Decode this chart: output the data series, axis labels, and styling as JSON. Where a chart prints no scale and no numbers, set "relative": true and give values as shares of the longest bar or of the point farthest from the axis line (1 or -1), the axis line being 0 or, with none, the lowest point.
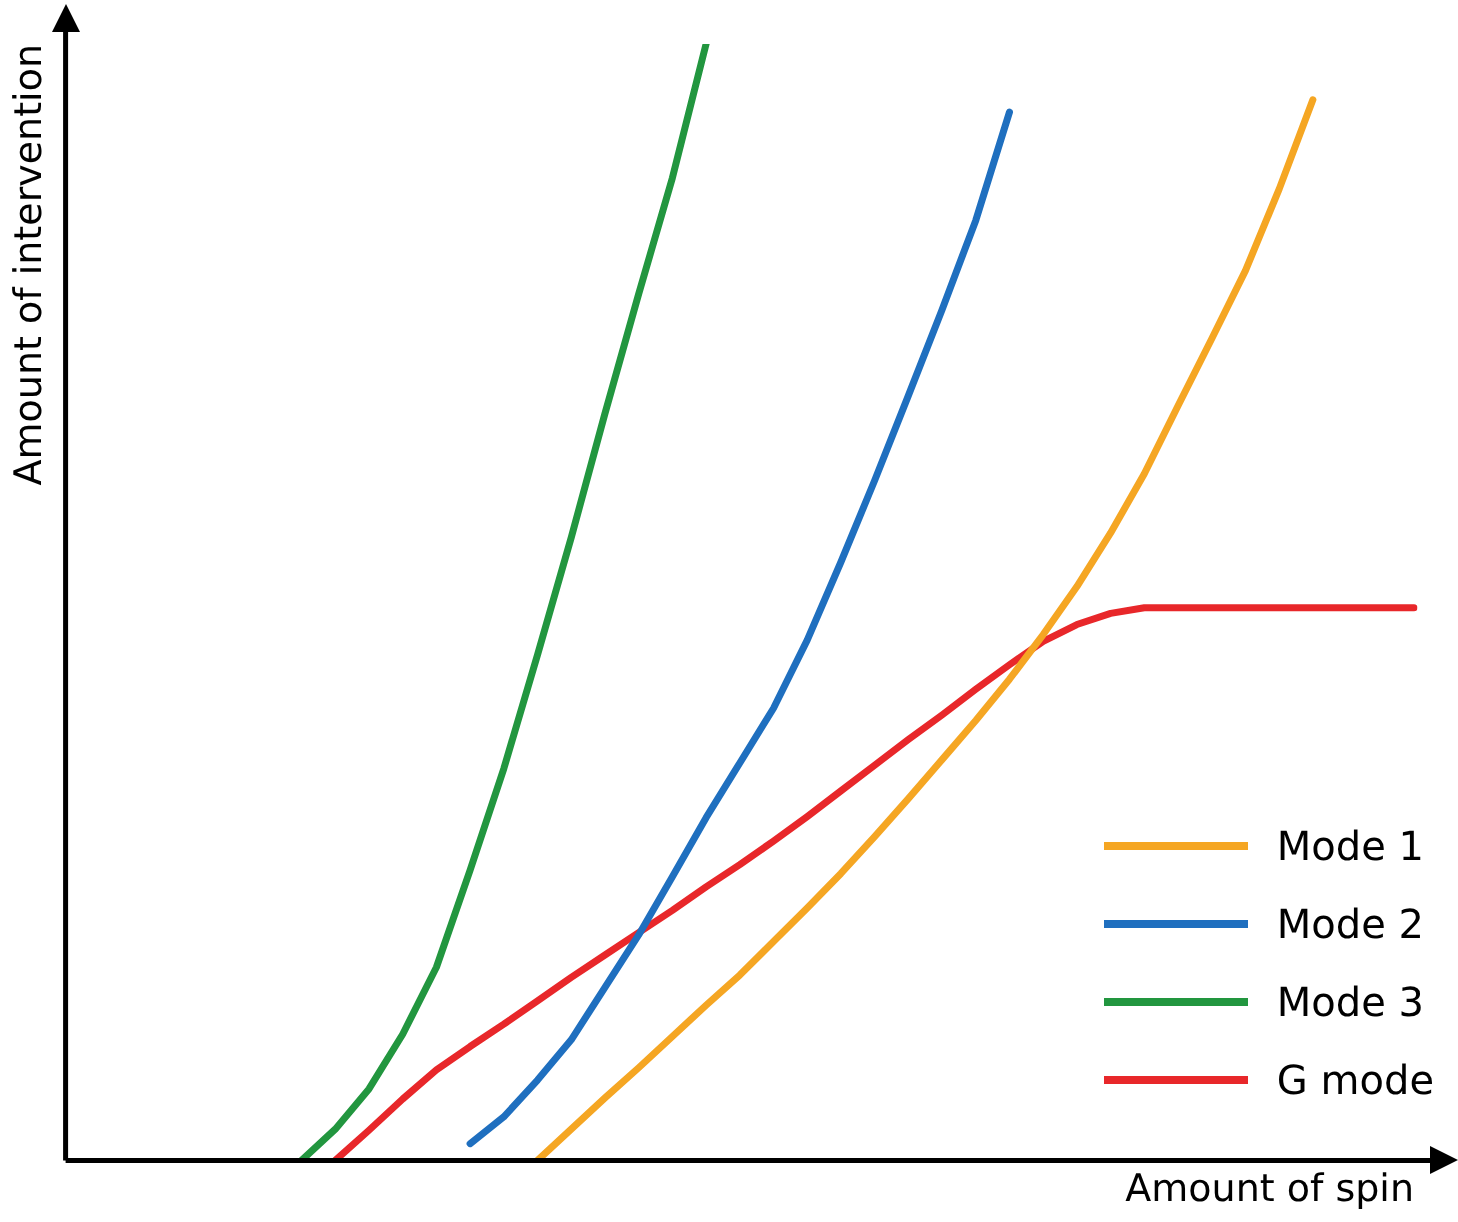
{
  "chart_data": {
    "type": "line",
    "relative": true,
    "xlabel": "Amount of spin",
    "ylabel": "Amount of intervention",
    "legend": "bottom right",
    "marker": "none",
    "line_style": "solid",
    "categories": [
      null,
      null,
      null,
      null,
      null,
      null,
      null,
      null,
      null,
      null,
      null,
      null,
      null,
      null,
      null,
      null,
      null,
      null,
      null,
      null,
      null,
      null,
      null,
      null,
      null,
      null,
      null,
      null,
      null,
      null,
      null,
      null,
      null,
      null,
      null,
      null,
      null,
      null,
      null,
      null,
      null
    ],
    "series": [
      {
        "name": "Mode 1",
        "color": "#f5a623",
        "values": [
          null,
          null,
          null,
          null,
          null,
          null,
          null,
          null,
          null,
          null,
          null,
          null,
          null,
          null,
          0,
          0.028,
          0.056,
          0.083,
          0.111,
          0.139,
          0.166,
          0.196,
          0.226,
          0.257,
          0.29,
          0.324,
          0.359,
          0.394,
          0.431,
          0.471,
          0.514,
          0.562,
          0.615,
          0.676,
          0.736,
          0.797,
          0.87,
          0.95,
          null,
          null,
          null
        ]
      },
      {
        "name": "Mode 2",
        "color": "#1f6fbf",
        "values": [
          null,
          null,
          null,
          null,
          null,
          null,
          null,
          null,
          null,
          null,
          null,
          null,
          0.015,
          0.039,
          0.072,
          0.108,
          0.155,
          0.202,
          0.254,
          0.307,
          0.356,
          0.405,
          0.466,
          0.536,
          0.609,
          0.685,
          0.762,
          0.842,
          0.939,
          null,
          null,
          null,
          null,
          null,
          null,
          null,
          null,
          null,
          null,
          null,
          null
        ]
      },
      {
        "name": "Mode 3",
        "color": "#22963f",
        "values": [
          null,
          null,
          null,
          null,
          null,
          null,
          null,
          0,
          0.028,
          0.064,
          0.113,
          0.173,
          0.26,
          0.351,
          0.453,
          0.558,
          0.669,
          0.776,
          0.88,
          1,
          null,
          null,
          null,
          null,
          null,
          null,
          null,
          null,
          null,
          null,
          null,
          null,
          null,
          null,
          null,
          null,
          null,
          null,
          null,
          null,
          null
        ]
      },
      {
        "name": "G mode",
        "color": "#e8272a",
        "values": [
          null,
          null,
          null,
          null,
          null,
          null,
          null,
          null,
          0,
          0.027,
          0.055,
          0.081,
          0.102,
          0.122,
          0.143,
          0.164,
          0.184,
          0.204,
          0.224,
          0.245,
          0.265,
          0.286,
          0.308,
          0.331,
          0.354,
          0.377,
          0.399,
          0.422,
          0.444,
          0.465,
          0.48,
          0.49,
          0.495,
          0.495,
          0.495,
          0.495,
          0.495,
          0.495,
          0.495,
          0.495,
          0.495
        ]
      }
    ]
  }
}
